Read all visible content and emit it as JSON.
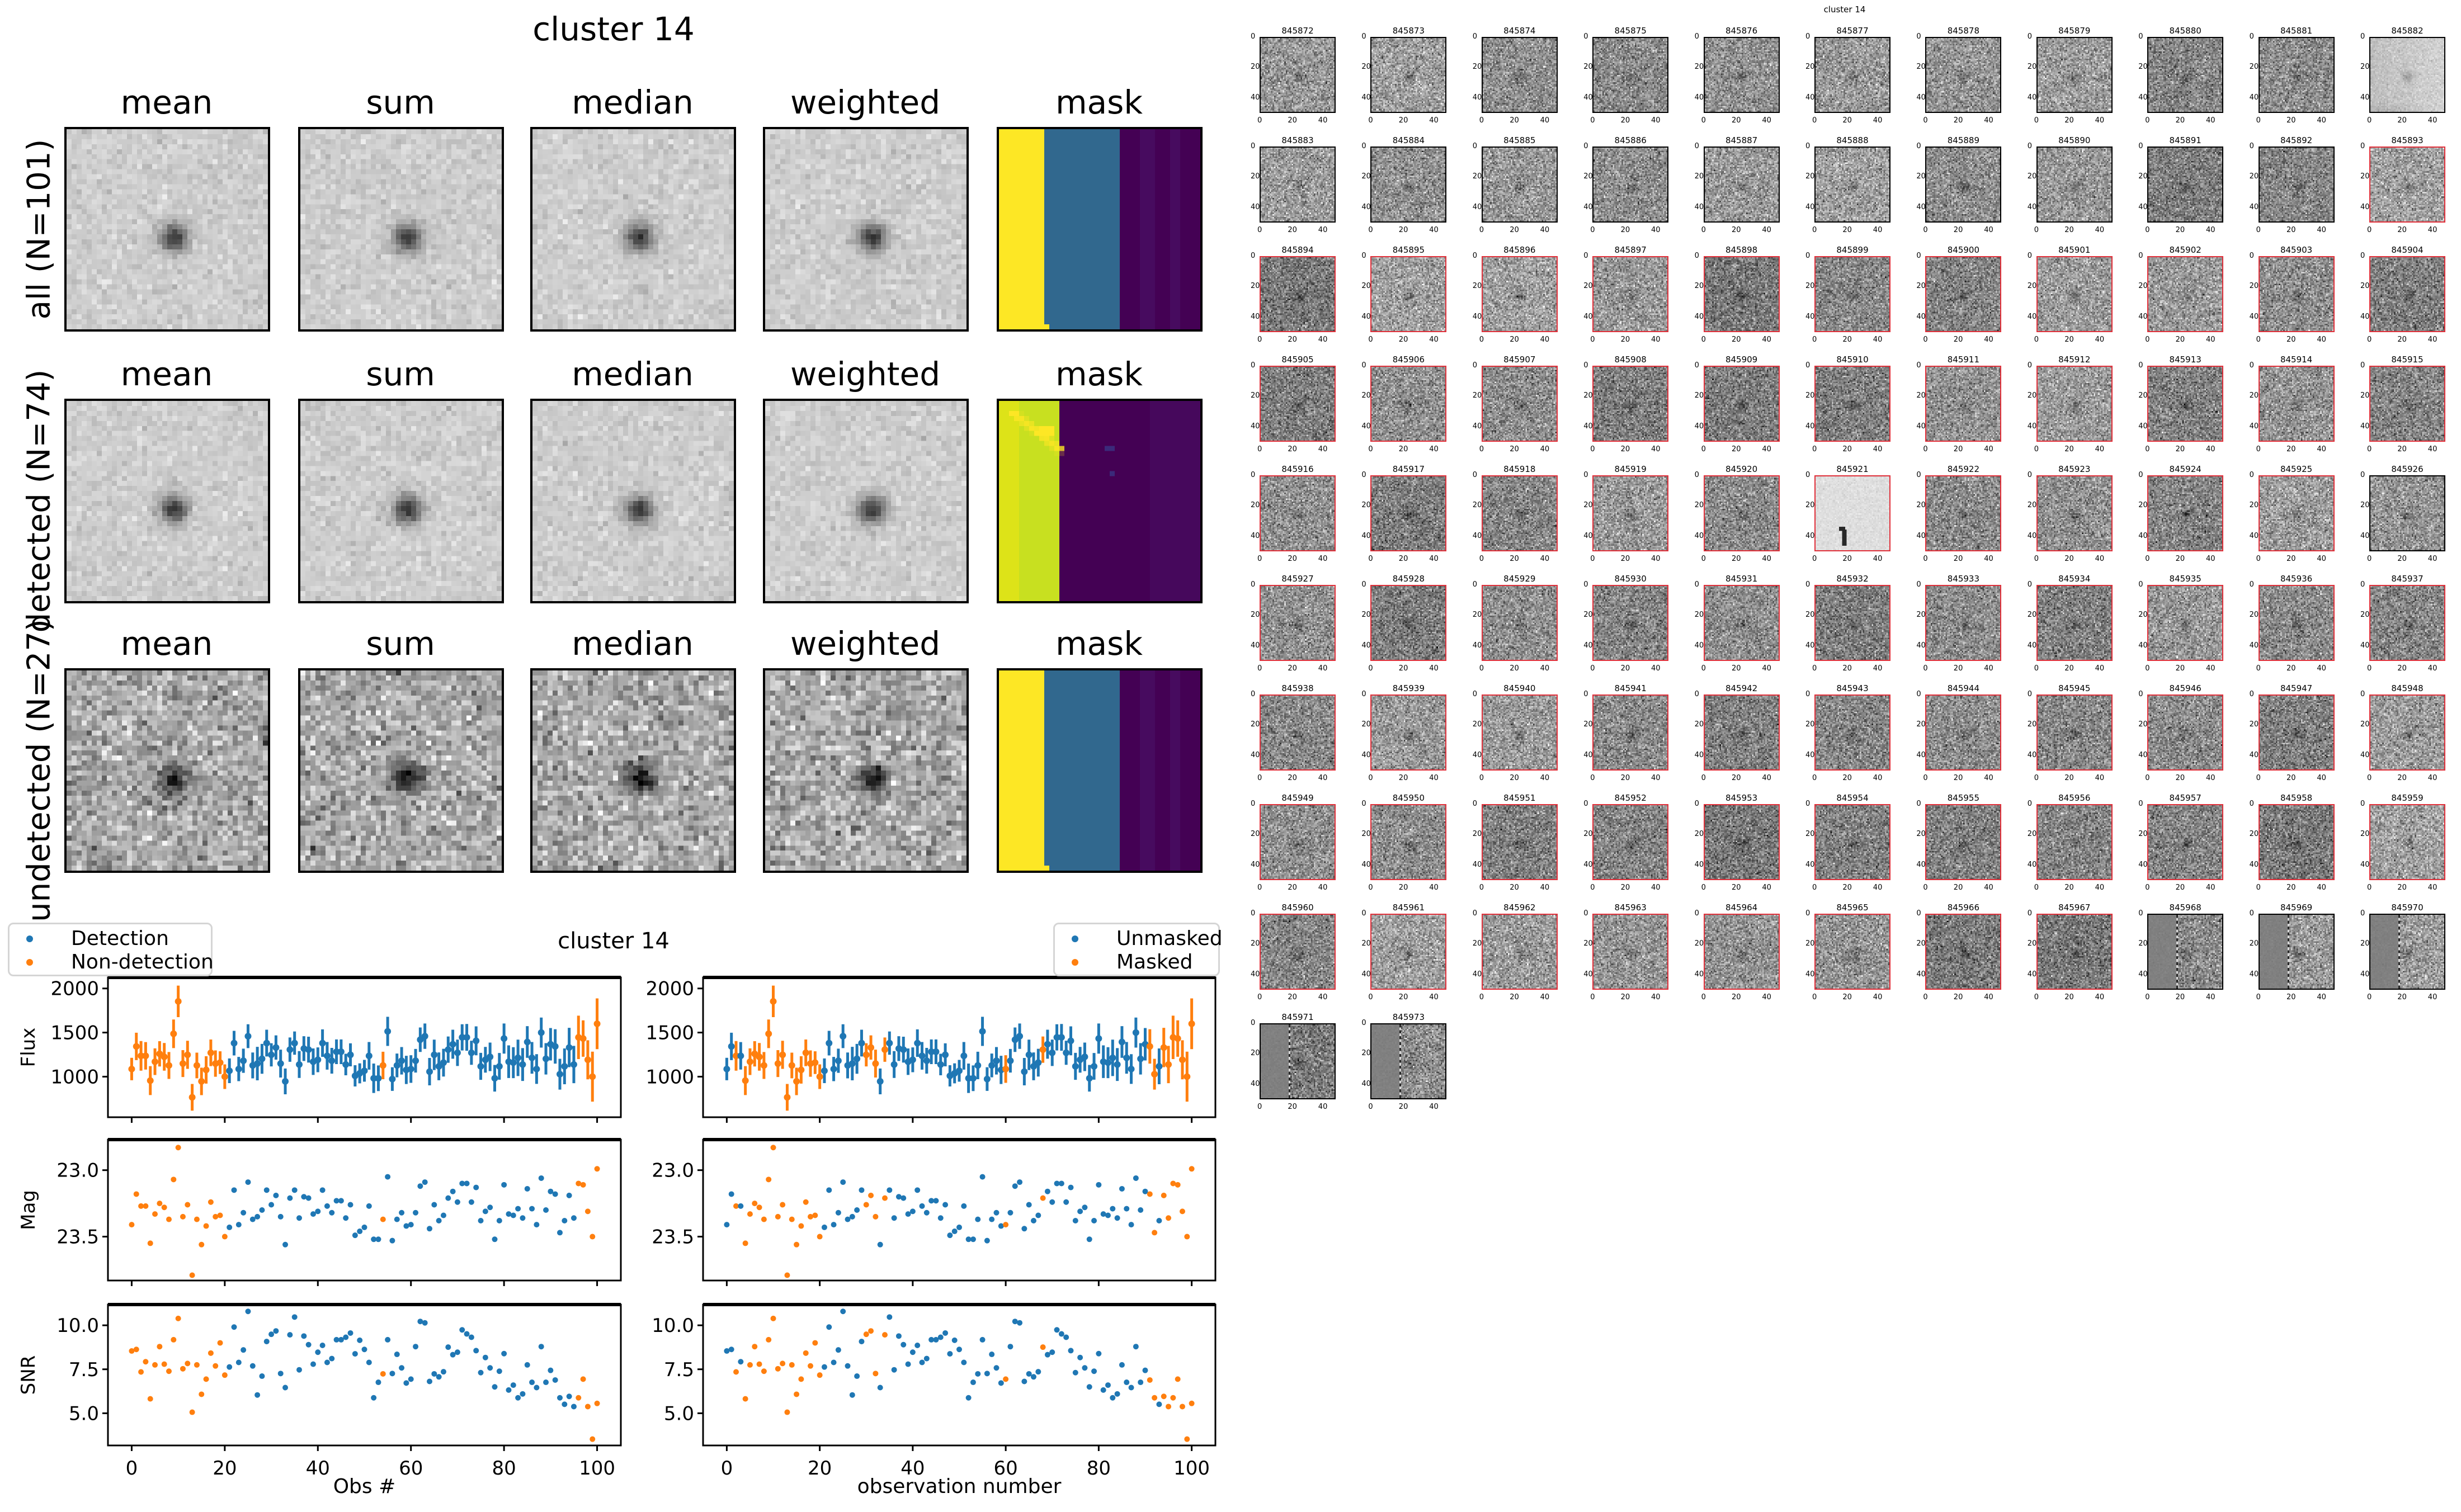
{
  "stack_figure": {
    "title": "cluster 14",
    "columns": [
      "mean",
      "sum",
      "median",
      "weighted",
      "mask"
    ],
    "rows": [
      {
        "label": "all (N=101)"
      },
      {
        "label": "detected (N=74)"
      },
      {
        "label": "undetected (N=27)"
      }
    ]
  },
  "lightcurve": {
    "title": "cluster 14",
    "legend_left": [
      "Detection",
      "Non-detection"
    ],
    "legend_right": [
      "Unmasked",
      "Masked"
    ],
    "ylabels": [
      "Flux",
      "Mag",
      "SNR"
    ],
    "xlabel_left": "Obs #",
    "xlabel_right": "observation number",
    "colors": {
      "primary": "#1f77b4",
      "secondary": "#ff7f0e"
    }
  },
  "thumbnails": {
    "title": "cluster 14",
    "ticks": [
      "0",
      "20",
      "40"
    ],
    "ids": [
      845872,
      845873,
      845874,
      845875,
      845876,
      845877,
      845878,
      845879,
      845880,
      845881,
      845882,
      845883,
      845884,
      845885,
      845886,
      845887,
      845888,
      845889,
      845890,
      845891,
      845892,
      845893,
      845894,
      845895,
      845896,
      845897,
      845898,
      845899,
      845900,
      845901,
      845902,
      845903,
      845904,
      845905,
      845906,
      845907,
      845908,
      845909,
      845910,
      845911,
      845912,
      845913,
      845914,
      845915,
      845916,
      845917,
      845918,
      845919,
      845920,
      845921,
      845922,
      845923,
      845924,
      845925,
      845926,
      845927,
      845928,
      845929,
      845930,
      845931,
      845932,
      845933,
      845934,
      845935,
      845936,
      845937,
      845938,
      845939,
      845940,
      845941,
      845942,
      845943,
      845944,
      845945,
      845946,
      845947,
      845948,
      845949,
      845950,
      845951,
      845952,
      845953,
      845954,
      845955,
      845956,
      845957,
      845958,
      845959,
      845960,
      845961,
      845962,
      845963,
      845964,
      845965,
      845966,
      845967,
      845968,
      845969,
      845970,
      845971,
      845973
    ],
    "unflagged_ids": [
      845872,
      845873,
      845874,
      845875,
      845876,
      845877,
      845878,
      845879,
      845880,
      845881,
      845882,
      845883,
      845884,
      845885,
      845886,
      845887,
      845888,
      845889,
      845890,
      845891,
      845892,
      845926,
      845968,
      845969,
      845970,
      845971,
      845973
    ],
    "special": {
      "845882": "bright-gradient",
      "845921": "light-streak",
      "845968": "band",
      "845969": "band",
      "845970": "band",
      "845971": "band",
      "845973": "band"
    },
    "flag_color": "#e0303a"
  },
  "chart_data": {
    "type": "scatter",
    "title": "cluster 14",
    "x": "observation index 0..100",
    "xlabel": [
      "Obs #",
      "observation number"
    ],
    "xticks": [
      0,
      20,
      40,
      60,
      80,
      100
    ],
    "xlim": [
      -5.1,
      105.1
    ],
    "mag_zeropoint": 31.0,
    "panels": [
      {
        "ylabel": "Flux",
        "ylim": [
          540,
          2125
        ],
        "yticks": [
          1000,
          1500,
          2000
        ],
        "ytick_labels": [
          "1000",
          "1500",
          "2000"
        ],
        "errorbars": true
      },
      {
        "ylabel": "Mag",
        "ylim": [
          23.83,
          22.77
        ],
        "yticks": [
          23.0,
          23.5
        ],
        "ytick_labels": [
          "23.0",
          "23.5"
        ],
        "inverted": true
      },
      {
        "ylabel": "SNR",
        "ylim": [
          3.17,
          11.18
        ],
        "yticks": [
          5.0,
          7.5,
          10.0
        ],
        "ytick_labels": [
          "5.0",
          "7.5",
          "10.0"
        ]
      }
    ],
    "mag": [
      23.41,
      23.18,
      23.27,
      23.27,
      23.55,
      23.33,
      23.25,
      23.28,
      23.37,
      23.07,
      22.83,
      23.35,
      23.26,
      23.79,
      23.37,
      23.56,
      23.42,
      23.24,
      23.35,
      23.34,
      23.5,
      23.43,
      23.15,
      23.41,
      23.32,
      23.09,
      23.37,
      23.35,
      23.3,
      23.15,
      23.26,
      23.19,
      23.35,
      23.56,
      23.21,
      23.15,
      23.36,
      23.2,
      23.21,
      23.33,
      23.31,
      23.15,
      23.27,
      23.32,
      23.23,
      23.23,
      23.36,
      23.26,
      23.49,
      23.46,
      23.43,
      23.27,
      23.52,
      23.52,
      23.37,
      23.05,
      23.53,
      23.37,
      23.32,
      23.42,
      23.41,
      23.32,
      23.12,
      23.09,
      23.44,
      23.26,
      23.38,
      23.34,
      23.21,
      23.16,
      23.24,
      23.1,
      23.1,
      23.24,
      23.13,
      23.38,
      23.31,
      23.28,
      23.52,
      23.38,
      23.11,
      23.33,
      23.34,
      23.29,
      23.36,
      23.14,
      23.29,
      23.41,
      23.06,
      23.3,
      23.16,
      23.18,
      23.47,
      23.38,
      23.19,
      23.36,
      23.1,
      23.11,
      23.31,
      23.5,
      22.99
    ],
    "snr": [
      8.54,
      8.63,
      7.35,
      7.93,
      5.82,
      7.75,
      8.79,
      7.79,
      7.39,
      9.18,
      10.39,
      7.53,
      7.83,
      5.06,
      7.75,
      6.08,
      6.94,
      8.42,
      7.69,
      9.0,
      7.17,
      7.63,
      9.9,
      7.89,
      8.6,
      10.79,
      7.69,
      6.04,
      7.11,
      9.08,
      9.49,
      9.68,
      7.26,
      6.46,
      9.46,
      10.47,
      7.47,
      9.39,
      8.9,
      7.79,
      8.47,
      8.86,
      7.89,
      8.11,
      9.18,
      9.18,
      9.32,
      9.56,
      8.38,
      9.15,
      8.63,
      7.89,
      5.88,
      6.76,
      7.24,
      9.18,
      7.26,
      8.35,
      7.58,
      6.72,
      6.94,
      8.79,
      10.22,
      10.14,
      6.81,
      7.24,
      7.07,
      7.36,
      8.76,
      8.33,
      8.47,
      9.74,
      9.51,
      9.32,
      8.56,
      7.31,
      8.17,
      7.58,
      6.5,
      7.39,
      8.39,
      6.32,
      6.6,
      5.88,
      6.1,
      7.75,
      6.76,
      6.46,
      8.79,
      6.76,
      7.44,
      6.89,
      5.88,
      5.51,
      5.96,
      5.38,
      5.88,
      6.94,
      5.38,
      3.53,
      5.56
    ],
    "nondetection_obs": [
      0,
      1,
      2,
      3,
      4,
      5,
      6,
      7,
      8,
      9,
      10,
      11,
      12,
      13,
      14,
      15,
      16,
      17,
      18,
      19,
      20,
      54,
      96,
      97,
      98,
      99,
      100
    ],
    "masked_obs": [
      2,
      4,
      5,
      6,
      7,
      8,
      9,
      10,
      11,
      12,
      13,
      14,
      15,
      16,
      17,
      18,
      19,
      20,
      30,
      31,
      32,
      34,
      60,
      68,
      91,
      92,
      94,
      95,
      96,
      97,
      98,
      99,
      100
    ],
    "legend_placement": [
      "upper-left (outside)",
      "upper-right (outside)"
    ]
  }
}
